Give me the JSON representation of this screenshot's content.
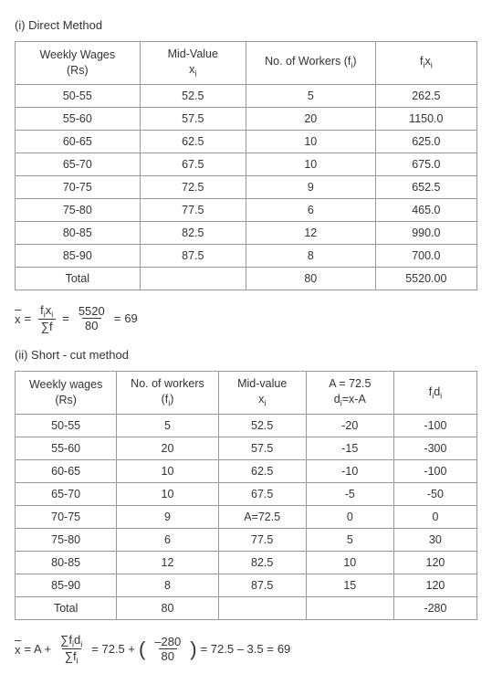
{
  "section1": {
    "title": "(i) Direct Method",
    "table": {
      "headers": [
        "Weekly Wages (Rs)",
        "Mid-Value xᵢ",
        "No. of Workers (fᵢ)",
        "fᵢxᵢ"
      ],
      "rows": [
        [
          "50-55",
          "52.5",
          "5",
          "262.5"
        ],
        [
          "55-60",
          "57.5",
          "20",
          "1150.0"
        ],
        [
          "60-65",
          "62.5",
          "10",
          "625.0"
        ],
        [
          "65-70",
          "67.5",
          "10",
          "675.0"
        ],
        [
          "70-75",
          "72.5",
          "9",
          "652.5"
        ],
        [
          "75-80",
          "77.5",
          "6",
          "465.0"
        ],
        [
          "80-85",
          "82.5",
          "12",
          "990.0"
        ],
        [
          "85-90",
          "87.5",
          "8",
          "700.0"
        ],
        [
          "Total",
          "",
          "80",
          "5520.00"
        ]
      ],
      "col_widths": [
        "27%",
        "23%",
        "28%",
        "22%"
      ]
    },
    "formula": {
      "lhs_num": "fᵢxᵢ",
      "lhs_den": "∑f",
      "mid_num": "5520",
      "mid_den": "80",
      "result": "69"
    }
  },
  "section2": {
    "title": "(ii) Short - cut method",
    "table": {
      "headers": [
        "Weekly wages (Rs)",
        "No. of workers (fᵢ)",
        "Mid-value xᵢ",
        "A = 72.5 dᵢ=x-A",
        "fᵢdᵢ"
      ],
      "rows": [
        [
          "50-55",
          "5",
          "52.5",
          "-20",
          "-100"
        ],
        [
          "55-60",
          "20",
          "57.5",
          "-15",
          "-300"
        ],
        [
          "60-65",
          "10",
          "62.5",
          "-10",
          "-100"
        ],
        [
          "65-70",
          "10",
          "67.5",
          "-5",
          "-50"
        ],
        [
          "70-75",
          "9",
          "A=72.5",
          "0",
          "0"
        ],
        [
          "75-80",
          "6",
          "77.5",
          "5",
          "30"
        ],
        [
          "80-85",
          "12",
          "82.5",
          "10",
          "120"
        ],
        [
          "85-90",
          "8",
          "87.5",
          "15",
          "120"
        ],
        [
          "Total",
          "80",
          "",
          "",
          "-280"
        ]
      ],
      "col_widths": [
        "22%",
        "22%",
        "19%",
        "19%",
        "18%"
      ]
    },
    "formula": {
      "A_label": "A +",
      "sum_num": "∑fᵢdᵢ",
      "sum_den": "∑fᵢ",
      "A_val": "72.5 +",
      "mid_num": "–280",
      "mid_den": "80",
      "step": "= 72.5 – 3.5 =",
      "result": "69"
    }
  }
}
